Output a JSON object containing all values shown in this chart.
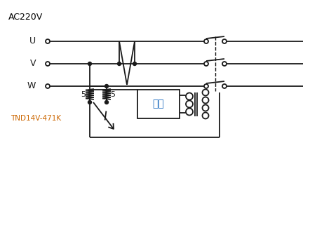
{
  "title": "AC220V",
  "title_color": "#000000",
  "label_color": "#cc6600",
  "box_text_color": "#1a6bbf",
  "line_color": "#1a1a1a",
  "bg_color": "#ffffff",
  "uvw_labels": [
    "U",
    "V",
    "W"
  ],
  "component_label": "TND14V-471K",
  "box_label": "回路",
  "figsize": [
    4.42,
    3.24
  ],
  "dpi": 100
}
